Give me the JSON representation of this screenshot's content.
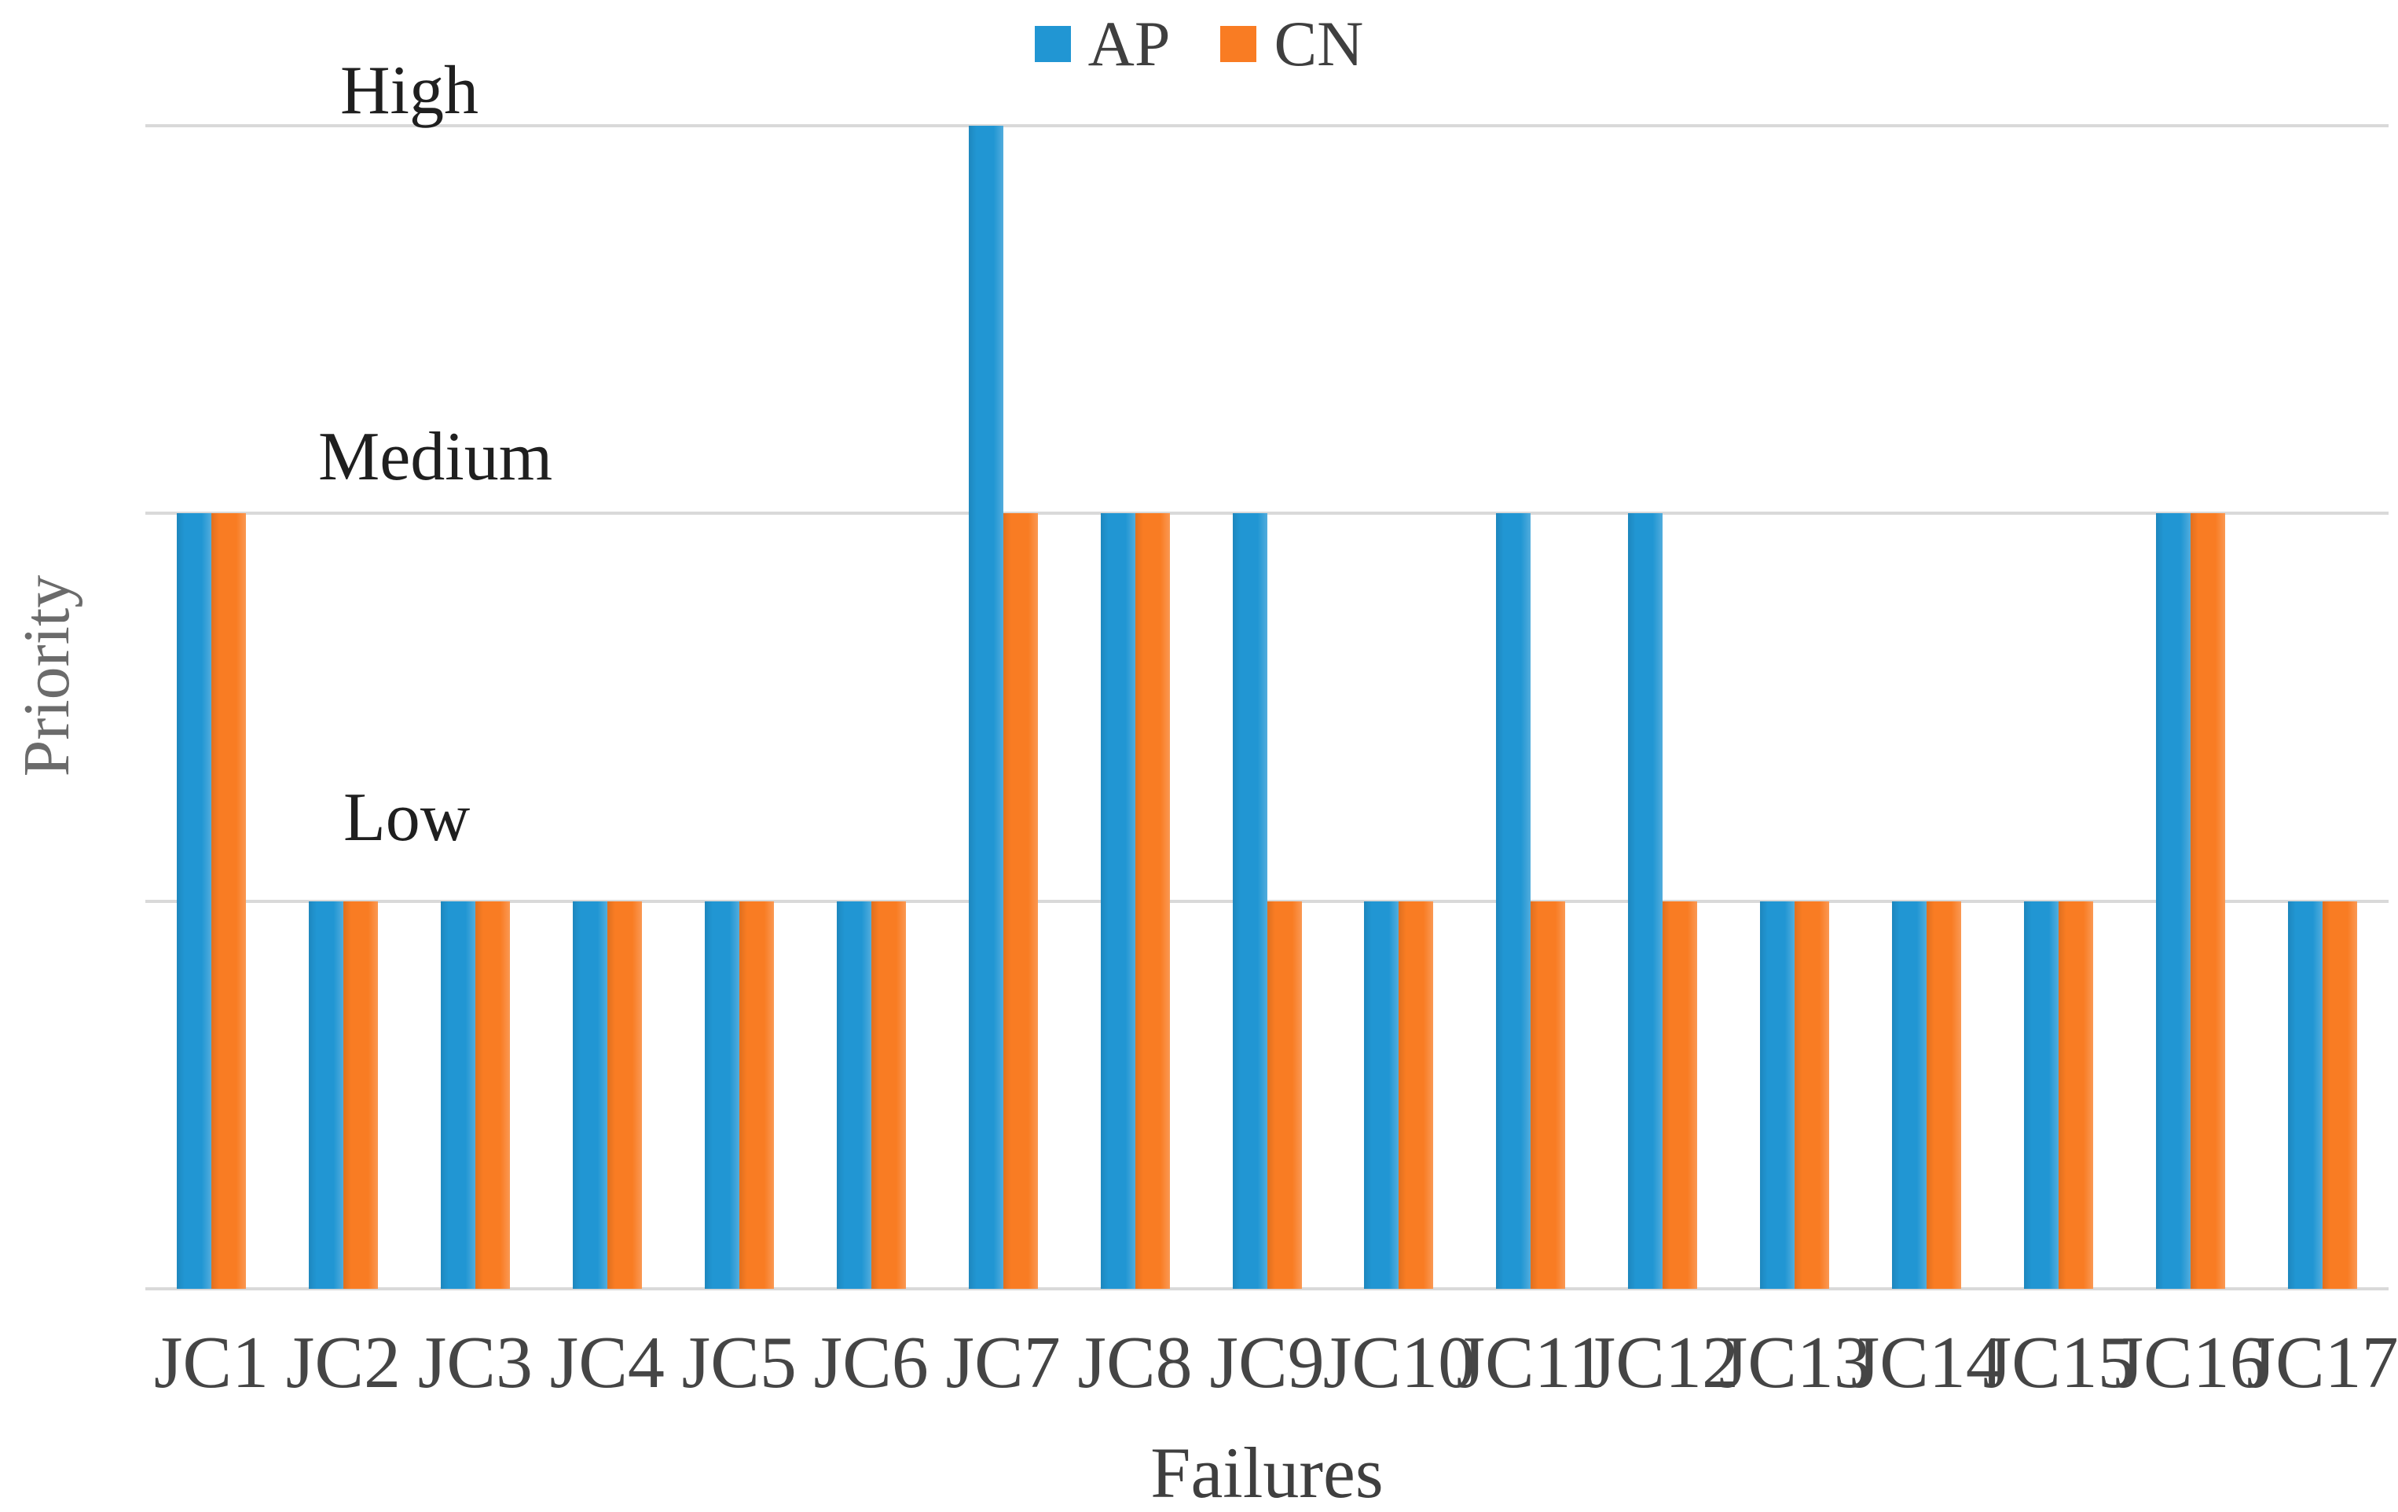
{
  "chart_data": {
    "type": "bar",
    "title": "",
    "xlabel": "Failures",
    "ylabel": "Priority",
    "categories": [
      "JC1",
      "JC2",
      "JC3",
      "JC4",
      "JC5",
      "JC6",
      "JC7",
      "JC8",
      "JC9",
      "JC10",
      "JC11",
      "JC12",
      "JC13",
      "JC14",
      "JC15",
      "JC16",
      "JC17"
    ],
    "series": [
      {
        "name": "AP",
        "color": "#2196D3",
        "values": [
          "Medium",
          "Low",
          "Low",
          "Low",
          "Low",
          "Low",
          "High",
          "Medium",
          "Medium",
          "Low",
          "Medium",
          "Medium",
          "Low",
          "Low",
          "Low",
          "Medium",
          "Low"
        ]
      },
      {
        "name": "CN",
        "color": "#F97C23",
        "values": [
          "Medium",
          "Low",
          "Low",
          "Low",
          "Low",
          "Low",
          "Medium",
          "Medium",
          "Low",
          "Low",
          "Low",
          "Low",
          "Low",
          "Low",
          "Low",
          "Medium",
          "Low"
        ]
      }
    ],
    "value_scale": {
      "Low": 1,
      "Medium": 2,
      "High": 3
    },
    "y_ticks": [
      {
        "label": "High",
        "value": 3
      },
      {
        "label": "Medium",
        "value": 2
      },
      {
        "label": "Low",
        "value": 1
      }
    ],
    "ylim": [
      0,
      3
    ],
    "grid": "horizontal",
    "legend_position": "top-center",
    "gridline_color": "#D9D9D9",
    "tick_label_color": "#1f1f1f",
    "category_label_color": "#454545",
    "axis_title_colors": {
      "x": "#3f3f3f",
      "y": "#6b6b6b"
    }
  }
}
